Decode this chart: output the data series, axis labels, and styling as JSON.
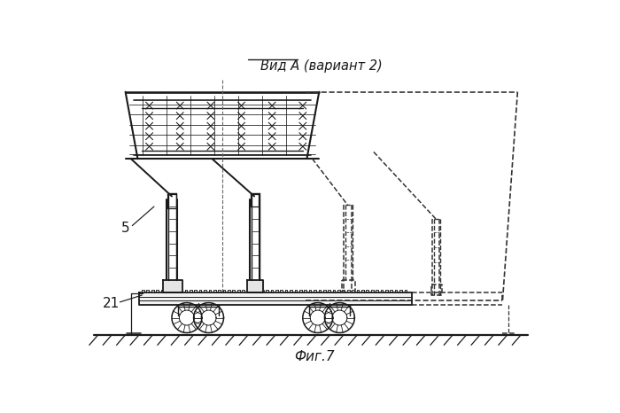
{
  "title": "Вид А (вариант 2)",
  "figure_label": "Фиг.7",
  "label_5": "5",
  "label_21": "21",
  "bg_color": "#ffffff",
  "line_color": "#1a1a1a",
  "dashed_color": "#333333",
  "figsize": [
    7.0,
    4.66
  ],
  "dpi": 100
}
